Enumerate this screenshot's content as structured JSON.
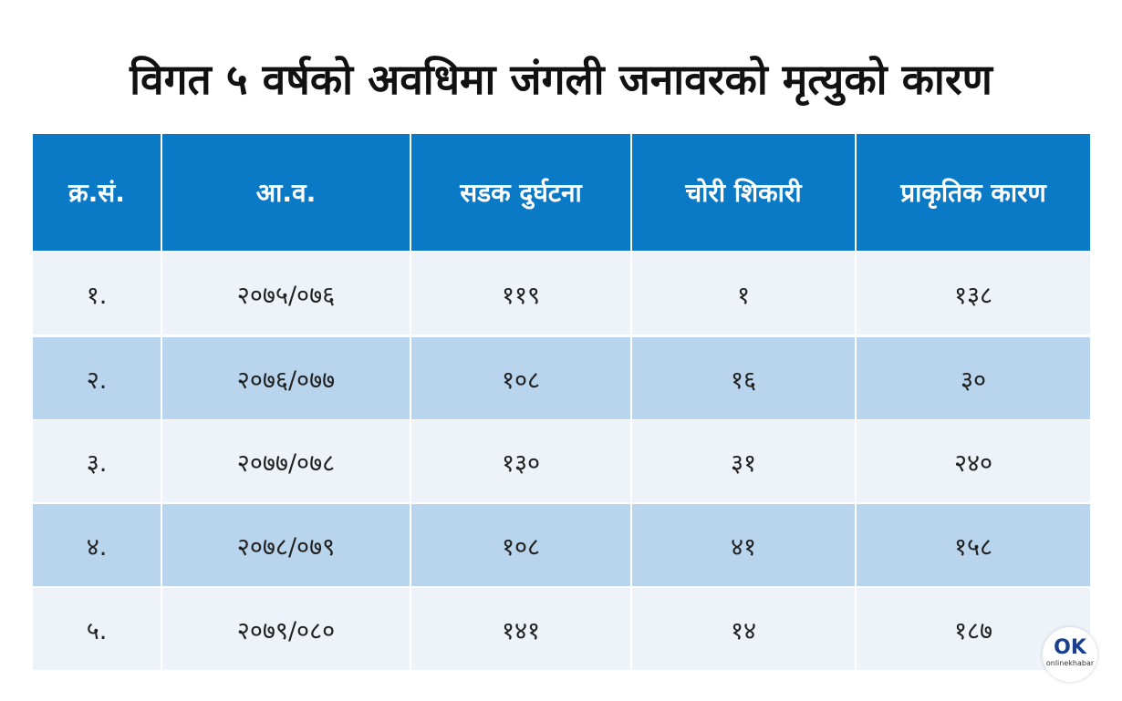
{
  "header": {
    "title": "विगत ५ वर्षको अवधिमा जंगली जनावरको मृत्युको कारण"
  },
  "table": {
    "columns": [
      "क्र.सं.",
      "आ.व.",
      "सडक दुर्घटना",
      "चोरी शिकारी",
      "प्राकृतिक कारण"
    ],
    "rows": [
      [
        "१.",
        "२०७५/०७६",
        "११९",
        "१",
        "१३८"
      ],
      [
        "२.",
        "२०७६/०७७",
        "१०८",
        "१६",
        "३०"
      ],
      [
        "३.",
        "२०७७/०७८",
        "१३०",
        "३१",
        "२४०"
      ],
      [
        "४.",
        "२०७८/०७९",
        "१०८",
        "४१",
        "१५८"
      ],
      [
        "५.",
        "२०७९/०८०",
        "१४१",
        "१४",
        "१८७"
      ]
    ]
  },
  "logo": {
    "mark": "OK",
    "text": "onlinekhabar"
  }
}
